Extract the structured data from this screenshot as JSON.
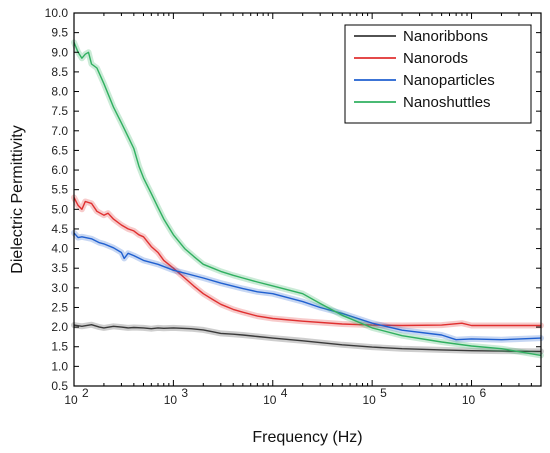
{
  "chart_data": {
    "type": "line",
    "title": "",
    "xlabel": "Frequency (Hz)",
    "ylabel": "Dielectric Permittivity",
    "x_scale": "log",
    "xlim": [
      100,
      5000000
    ],
    "ylim": [
      0.5,
      10.0
    ],
    "y_ticks": [
      0.5,
      1.0,
      1.5,
      2.0,
      2.5,
      3.0,
      3.5,
      4.0,
      4.5,
      5.0,
      5.5,
      6.0,
      6.5,
      7.0,
      7.5,
      8.0,
      8.5,
      9.0,
      9.5,
      10.0
    ],
    "y_tick_labels": [
      "0.5",
      "1.0",
      "1.5",
      "2.0",
      "2.5",
      "3.0",
      "3.5",
      "4.0",
      "4.5",
      "5.0",
      "5.5",
      "6.0",
      "6.5",
      "7.0",
      "7.5",
      "8.0",
      "8.5",
      "9.0",
      "9.5",
      "10.0"
    ],
    "x_ticks": [
      {
        "value": 100,
        "base": "10",
        "exp": "2"
      },
      {
        "value": 1000,
        "base": "10",
        "exp": "3"
      },
      {
        "value": 10000,
        "base": "10",
        "exp": "4"
      },
      {
        "value": 100000,
        "base": "10",
        "exp": "5"
      },
      {
        "value": 1000000,
        "base": "10",
        "exp": "6"
      }
    ],
    "grid": false,
    "legend_position": "top-right",
    "series": [
      {
        "name": "Nanoribbons",
        "color": "#3a3a3a",
        "x": [
          100,
          120,
          150,
          180,
          200,
          250,
          300,
          350,
          400,
          500,
          600,
          700,
          800,
          1000,
          1500,
          2000,
          2500,
          3000,
          4000,
          5000,
          7000,
          10000,
          20000,
          50000,
          100000,
          200000,
          500000,
          1000000,
          2000000,
          5000000
        ],
        "y": [
          2.05,
          2.02,
          2.06,
          2.0,
          1.98,
          2.02,
          2.0,
          1.98,
          1.99,
          1.98,
          1.96,
          1.98,
          1.97,
          1.98,
          1.96,
          1.93,
          1.88,
          1.84,
          1.82,
          1.8,
          1.76,
          1.72,
          1.65,
          1.55,
          1.49,
          1.45,
          1.42,
          1.4,
          1.39,
          1.38
        ]
      },
      {
        "name": "Nanorods",
        "color": "#e03030",
        "x": [
          100,
          110,
          120,
          130,
          150,
          170,
          200,
          220,
          250,
          300,
          350,
          400,
          450,
          500,
          600,
          700,
          800,
          1000,
          1300,
          1600,
          2000,
          2500,
          3000,
          4000,
          5000,
          7000,
          10000,
          20000,
          50000,
          100000,
          200000,
          500000,
          800000,
          1000000,
          2000000,
          5000000
        ],
        "y": [
          5.3,
          5.1,
          5.0,
          5.2,
          5.15,
          4.95,
          4.85,
          4.9,
          4.75,
          4.6,
          4.5,
          4.45,
          4.35,
          4.3,
          4.05,
          3.9,
          3.7,
          3.5,
          3.25,
          3.05,
          2.85,
          2.7,
          2.58,
          2.45,
          2.38,
          2.28,
          2.22,
          2.15,
          2.08,
          2.05,
          2.04,
          2.05,
          2.1,
          2.04,
          2.04,
          2.04
        ]
      },
      {
        "name": "Nanoparticles",
        "color": "#2060d0",
        "x": [
          100,
          110,
          120,
          150,
          180,
          200,
          250,
          300,
          320,
          350,
          400,
          500,
          700,
          1000,
          2000,
          3000,
          5000,
          7000,
          10000,
          20000,
          30000,
          50000,
          100000,
          200000,
          500000,
          700000,
          1000000,
          2000000,
          5000000
        ],
        "y": [
          4.4,
          4.28,
          4.3,
          4.25,
          4.15,
          4.12,
          4.02,
          3.9,
          3.75,
          3.88,
          3.82,
          3.7,
          3.6,
          3.45,
          3.25,
          3.12,
          2.98,
          2.9,
          2.85,
          2.65,
          2.5,
          2.35,
          2.1,
          1.92,
          1.8,
          1.68,
          1.7,
          1.68,
          1.72
        ]
      },
      {
        "name": "Nanoshuttles",
        "color": "#30b060",
        "x": [
          100,
          110,
          120,
          130,
          140,
          150,
          170,
          200,
          250,
          300,
          350,
          400,
          450,
          500,
          600,
          700,
          800,
          1000,
          1300,
          1600,
          2000,
          2500,
          3000,
          4000,
          5000,
          7000,
          10000,
          20000,
          30000,
          50000,
          100000,
          200000,
          500000,
          1000000,
          2000000,
          5000000
        ],
        "y": [
          9.25,
          9.0,
          8.85,
          8.95,
          9.0,
          8.7,
          8.6,
          8.2,
          7.6,
          7.2,
          6.85,
          6.55,
          6.1,
          5.8,
          5.4,
          5.05,
          4.75,
          4.35,
          4.0,
          3.8,
          3.6,
          3.5,
          3.42,
          3.32,
          3.25,
          3.15,
          3.05,
          2.85,
          2.6,
          2.3,
          1.98,
          1.78,
          1.62,
          1.52,
          1.45,
          1.28
        ]
      }
    ]
  }
}
